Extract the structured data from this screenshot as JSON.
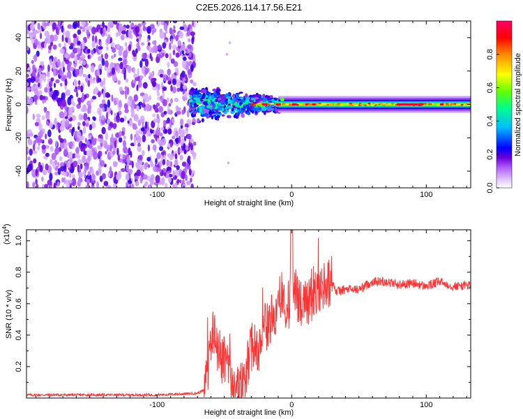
{
  "chart_data": [
    {
      "type": "heatmap",
      "title": "C2E5.2026.114.17.56.E21",
      "xlabel": "Height of straight line (km)",
      "ylabel": "Frequency (Hz)",
      "xlim": [
        -197,
        133
      ],
      "ylim": [
        -50,
        50
      ],
      "x_ticks": [
        -100,
        0,
        100
      ],
      "y_ticks": [
        -40,
        -20,
        0,
        20,
        40
      ],
      "colorbar": {
        "label": "Normalized spectral amplitude",
        "range": [
          0,
          1
        ],
        "ticks": [
          "0.0",
          "0.2",
          "0.4",
          "0.6",
          "0.8"
        ],
        "colors": [
          "#ffffff",
          "#cc88ff",
          "#8800dd",
          "#0000ff",
          "#00bbff",
          "#00ff88",
          "#88ff00",
          "#ffff00",
          "#ff8800",
          "#ff0000",
          "#ff0066"
        ]
      },
      "description_regions": [
        {
          "x_range": [
            -197,
            -72
          ],
          "freq_range": [
            -50,
            50
          ],
          "level": "noise, 0.1-0.3"
        },
        {
          "x_range": [
            -72,
            -10
          ],
          "freq_range": [
            -10,
            10
          ],
          "level": "turbulent, 0.2-0.7"
        },
        {
          "x_range": [
            -10,
            133
          ],
          "freq_range": [
            -3,
            3
          ],
          "level": "narrow band centered on 0 Hz, 0.5-1.0"
        }
      ]
    },
    {
      "type": "line",
      "title": "",
      "xlabel": "Height of straight line (km)",
      "ylabel": "SNR (10 * v/v)",
      "y_multiplier": "(x10",
      "y_multiplier_exp": "4",
      "y_multiplier_close": ")",
      "xlim": [
        -197,
        133
      ],
      "ylim": [
        0,
        1.07
      ],
      "x_ticks": [
        -100,
        0,
        100
      ],
      "y_ticks": [
        0.2,
        0.4,
        0.6,
        0.8,
        1.0
      ],
      "line_color": "#ff3333",
      "series": [
        {
          "name": "SNR",
          "x": [
            -197,
            -150,
            -100,
            -70,
            -65,
            -62,
            -60,
            -58,
            -55,
            -50,
            -45,
            -40,
            -38,
            -35,
            -33,
            -30,
            -25,
            -20,
            -15,
            -10,
            -5,
            -2,
            0,
            5,
            10,
            15,
            20,
            25,
            30,
            33,
            35,
            40,
            50,
            60,
            70,
            80,
            90,
            100,
            110,
            120,
            133
          ],
          "y": [
            0.02,
            0.02,
            0.02,
            0.03,
            0.05,
            0.22,
            0.35,
            0.45,
            0.28,
            0.22,
            0.12,
            0.06,
            0.05,
            0.08,
            0.18,
            0.32,
            0.35,
            0.45,
            0.5,
            0.55,
            0.58,
            0.6,
            0.75,
            0.6,
            0.62,
            0.66,
            0.7,
            0.73,
            0.76,
            0.67,
            0.68,
            0.69,
            0.69,
            0.74,
            0.74,
            0.72,
            0.73,
            0.71,
            0.74,
            0.71,
            0.72
          ]
        }
      ]
    }
  ]
}
